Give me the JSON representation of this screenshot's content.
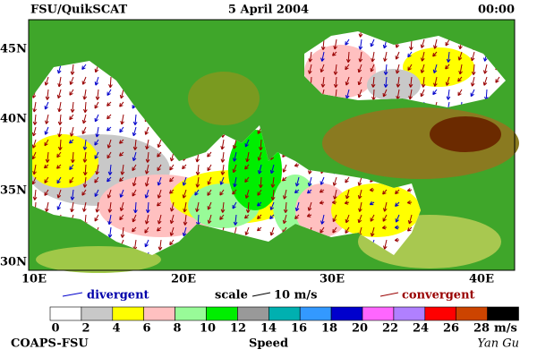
{
  "header": {
    "left": "FSU/QuikSCAT",
    "center": "5 April 2004",
    "right": "00:00"
  },
  "map": {
    "lat_labels": [
      "45N",
      "40N",
      "35N",
      "30N"
    ],
    "lon_labels": [
      "10E",
      "20E",
      "30E",
      "40E"
    ]
  },
  "legend": {
    "divergent": "divergent",
    "scale": "scale",
    "scale_value": "10 m/s",
    "convergent": "convergent"
  },
  "colorbar": {
    "labels": [
      0,
      2,
      4,
      6,
      8,
      10,
      12,
      14,
      16,
      18,
      20,
      22,
      24,
      26,
      28
    ],
    "colors": [
      "#ffffff",
      "#c8c8c8",
      "#ffff00",
      "#ffc0c0",
      "#98fb98",
      "#00ee00",
      "#999999",
      "#00b0b0",
      "#3399ff",
      "#0000cc",
      "#ff66ff",
      "#b080ff",
      "#ff0000",
      "#cc4400",
      "#000000"
    ],
    "unit": "m/s"
  },
  "footer": {
    "left": "COAPS-FSU",
    "center": "Speed",
    "right": "Yan Gu"
  }
}
